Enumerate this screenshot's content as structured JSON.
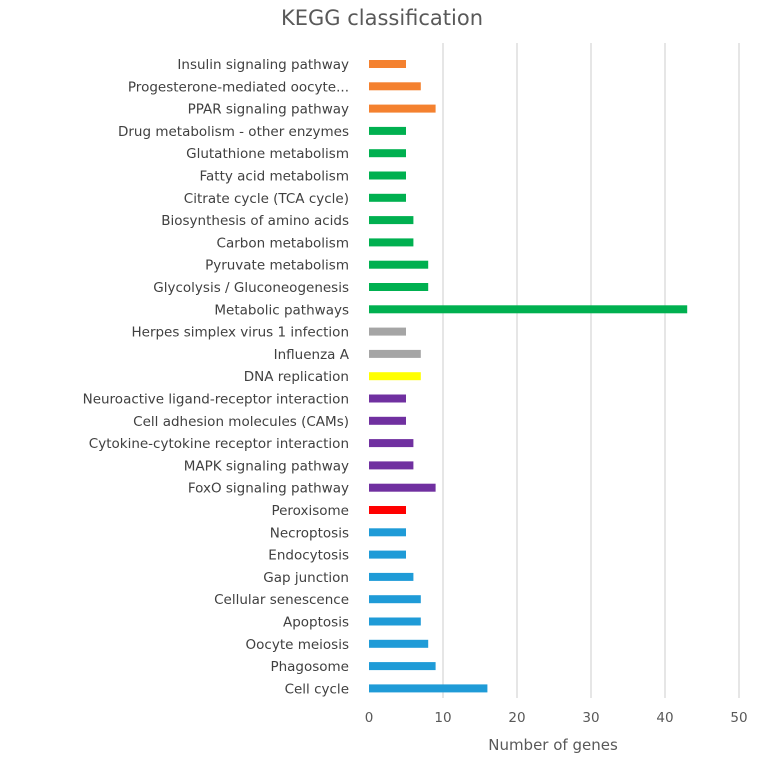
{
  "chart_data": {
    "type": "bar",
    "orientation": "horizontal",
    "title": "KEGG classification",
    "xlabel": "Number of genes",
    "ylabel": "",
    "xlim": [
      0,
      50
    ],
    "xticks": [
      "0",
      "10",
      "20",
      "30",
      "40",
      "50"
    ],
    "grid": true,
    "legend": "none",
    "categories": [
      "Insulin signaling pathway",
      "Progesterone-mediated oocyte...",
      "PPAR signaling pathway",
      "Drug metabolism - other enzymes",
      "Glutathione metabolism",
      "Fatty acid metabolism",
      "Citrate cycle (TCA cycle)",
      "Biosynthesis of amino acids",
      "Carbon metabolism",
      "Pyruvate metabolism",
      "Glycolysis / Gluconeogenesis",
      "Metabolic pathways",
      "Herpes simplex virus 1 infection",
      "Influenza A",
      "DNA replication",
      "Neuroactive ligand-receptor interaction",
      "Cell adhesion molecules (CAMs)",
      "Cytokine-cytokine receptor interaction",
      "MAPK signaling pathway",
      "FoxO signaling pathway",
      "Peroxisome",
      "Necroptosis",
      "Endocytosis",
      "Gap junction",
      "Cellular senescence",
      "Apoptosis",
      "Oocyte meiosis",
      "Phagosome",
      "Cell cycle"
    ],
    "values": [
      5,
      7,
      9,
      5,
      5,
      5,
      5,
      6,
      6,
      8,
      8,
      43,
      5,
      7,
      7,
      5,
      5,
      6,
      6,
      9,
      5,
      5,
      5,
      6,
      7,
      7,
      8,
      9,
      16
    ],
    "colors": [
      "#f4812f",
      "#f4812f",
      "#f4812f",
      "#00b050",
      "#00b050",
      "#00b050",
      "#00b050",
      "#00b050",
      "#00b050",
      "#00b050",
      "#00b050",
      "#00b050",
      "#a5a5a5",
      "#a5a5a5",
      "#ffff00",
      "#7030a0",
      "#7030a0",
      "#7030a0",
      "#7030a0",
      "#7030a0",
      "#ff0000",
      "#1f9bd7",
      "#1f9bd7",
      "#1f9bd7",
      "#1f9bd7",
      "#1f9bd7",
      "#1f9bd7",
      "#1f9bd7",
      "#1f9bd7"
    ]
  }
}
